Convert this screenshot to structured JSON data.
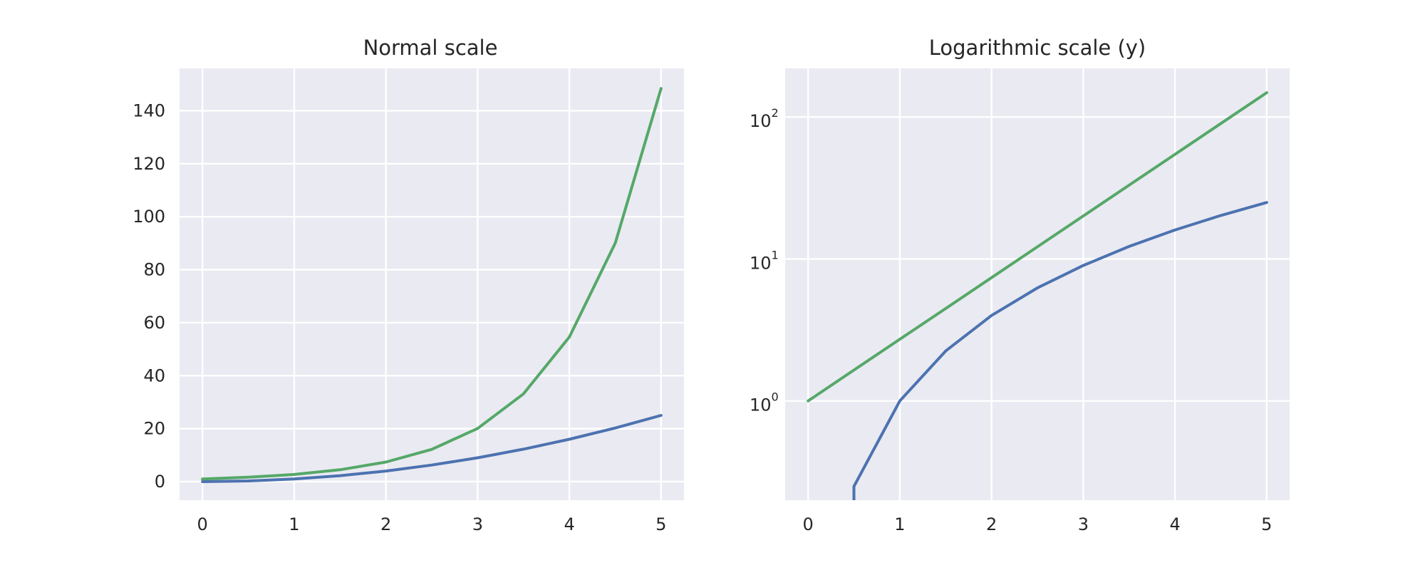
{
  "chart_data": [
    {
      "type": "line",
      "title": "Normal scale",
      "xlabel": "",
      "ylabel": "",
      "yscale": "linear",
      "xlim": [
        -0.25,
        5.25
      ],
      "ylim": [
        -7,
        156
      ],
      "xticks": [
        0,
        1,
        2,
        3,
        4,
        5
      ],
      "xtick_labels": [
        "0",
        "1",
        "2",
        "3",
        "4",
        "5"
      ],
      "yticks": [
        0,
        20,
        40,
        60,
        80,
        100,
        120,
        140
      ],
      "ytick_labels": [
        "0",
        "20",
        "40",
        "60",
        "80",
        "100",
        "120",
        "140"
      ],
      "grid": true,
      "x": [
        0,
        0.5,
        1,
        1.5,
        2,
        2.5,
        3,
        3.5,
        4,
        4.5,
        5
      ],
      "series": [
        {
          "color": "#4c72b0",
          "values": [
            0,
            0.25,
            1,
            2.25,
            4,
            6.25,
            9,
            12.25,
            16,
            20.25,
            25
          ]
        },
        {
          "color": "#55a868",
          "values": [
            1,
            1.65,
            2.72,
            4.48,
            7.39,
            12.18,
            20.09,
            33.12,
            54.6,
            90.02,
            148.41
          ]
        }
      ]
    },
    {
      "type": "line",
      "title": "Logarithmic scale (y)",
      "xlabel": "",
      "ylabel": "",
      "yscale": "log",
      "xlim": [
        -0.25,
        5.25
      ],
      "ylim": [
        0.2,
        220
      ],
      "xticks": [
        0,
        1,
        2,
        3,
        4,
        5
      ],
      "xtick_labels": [
        "0",
        "1",
        "2",
        "3",
        "4",
        "5"
      ],
      "yticks": [
        1,
        10,
        100
      ],
      "ytick_labels": [
        {
          "base": "10",
          "exp": "0"
        },
        {
          "base": "10",
          "exp": "1"
        },
        {
          "base": "10",
          "exp": "2"
        }
      ],
      "grid": true,
      "x": [
        0,
        0.5,
        1,
        1.5,
        2,
        2.5,
        3,
        3.5,
        4,
        4.5,
        5
      ],
      "series": [
        {
          "color": "#4c72b0",
          "values": [
            0,
            0.25,
            1,
            2.25,
            4,
            6.25,
            9,
            12.25,
            16,
            20.25,
            25
          ]
        },
        {
          "color": "#55a868",
          "values": [
            1,
            1.65,
            2.72,
            4.48,
            7.39,
            12.18,
            20.09,
            33.12,
            54.6,
            90.02,
            148.41
          ]
        }
      ]
    }
  ]
}
